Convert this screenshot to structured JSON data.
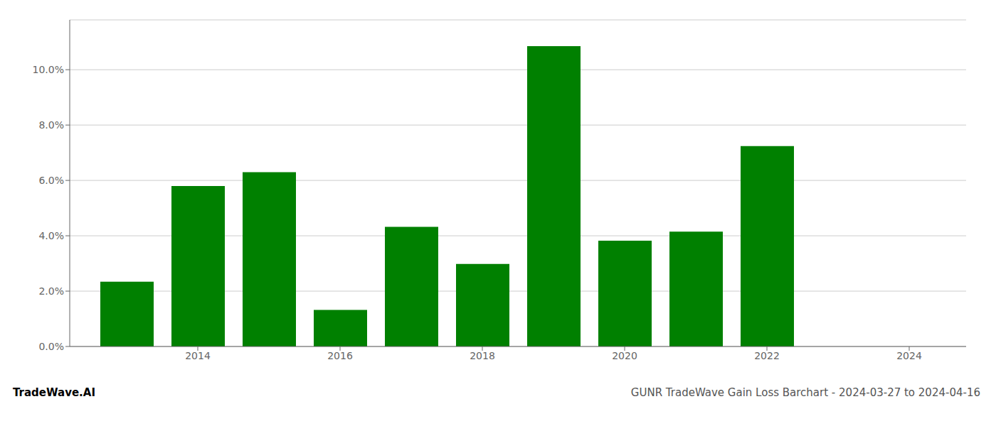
{
  "chart_data": {
    "type": "bar",
    "x": [
      2013,
      2014,
      2015,
      2016,
      2017,
      2018,
      2019,
      2020,
      2021,
      2022
    ],
    "values": [
      0.0234,
      0.058,
      0.063,
      0.0132,
      0.0432,
      0.0298,
      0.1085,
      0.0382,
      0.0415,
      0.0724
    ],
    "color": "#008000",
    "xlim": [
      2012.2,
      2024.8
    ],
    "xticks": [
      2014,
      2016,
      2018,
      2020,
      2022,
      2024
    ],
    "ylim": [
      0,
      0.118
    ],
    "yticks": [
      {
        "value": 0.0,
        "label": "0.0%"
      },
      {
        "value": 0.02,
        "label": "2.0%"
      },
      {
        "value": 0.04,
        "label": "4.0%"
      },
      {
        "value": 0.06,
        "label": "6.0%"
      },
      {
        "value": 0.08,
        "label": "8.0%"
      },
      {
        "value": 0.1,
        "label": "10.0%"
      }
    ],
    "grid": true,
    "annotations": [
      "TradeWave.AI",
      "GUNR TradeWave Gain Loss Barchart - 2024-03-27 to 2024-04-16"
    ]
  }
}
